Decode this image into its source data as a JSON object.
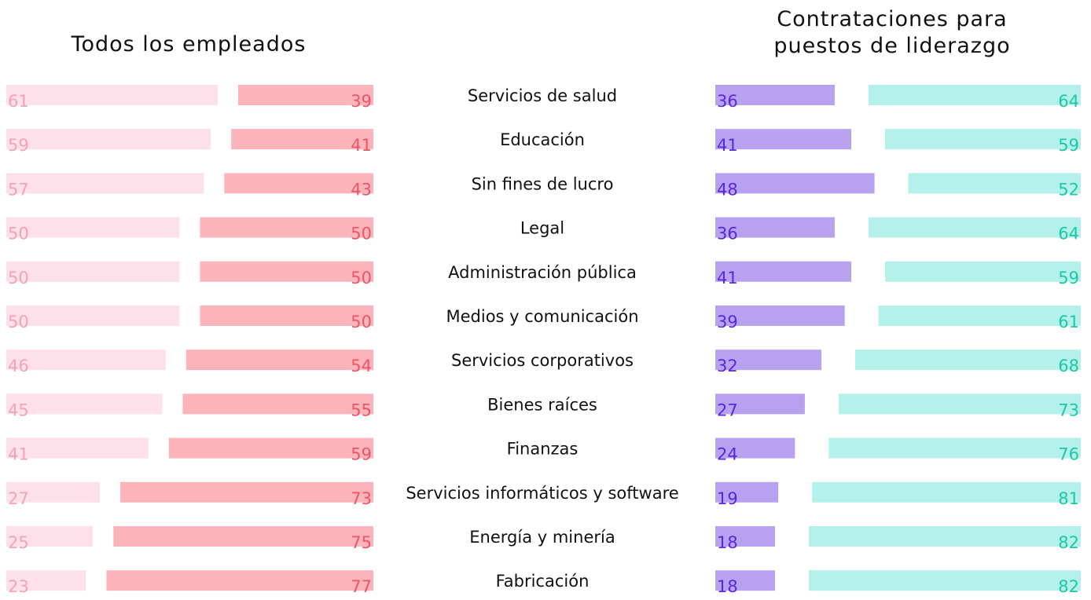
{
  "chart_data": {
    "type": "diverging-bar",
    "categories": [
      "Servicios de salud",
      "Educación",
      "Sin fines de lucro",
      "Legal",
      "Administración pública",
      "Medios y comunicación",
      "Servicios corporativos",
      "Bienes raíces",
      "Finanzas",
      "Servicios informáticos y software",
      "Energía y minería",
      "Fabricación"
    ],
    "panels": [
      {
        "title": "Todos los empleados",
        "series": [
          {
            "color": "#fde0ea",
            "label_color": "#f3a3b3",
            "values": [
              61,
              59,
              57,
              50,
              50,
              50,
              46,
              45,
              41,
              27,
              25,
              23
            ]
          },
          {
            "color": "#fbb4ba",
            "label_color": "#ef5566",
            "values": [
              39,
              41,
              43,
              50,
              50,
              50,
              54,
              55,
              59,
              73,
              75,
              77
            ]
          }
        ]
      },
      {
        "title": "Contrataciones para puestos de liderazgo",
        "series": [
          {
            "color": "#b8a2f0",
            "label_color": "#5a26e0",
            "values": [
              36,
              41,
              48,
              36,
              41,
              39,
              32,
              27,
              24,
              19,
              18,
              18
            ]
          },
          {
            "color": "#b4f1ea",
            "label_color": "#1cc8a6",
            "values": [
              64,
              59,
              52,
              64,
              59,
              61,
              68,
              73,
              76,
              81,
              82,
              82
            ]
          }
        ]
      }
    ]
  }
}
